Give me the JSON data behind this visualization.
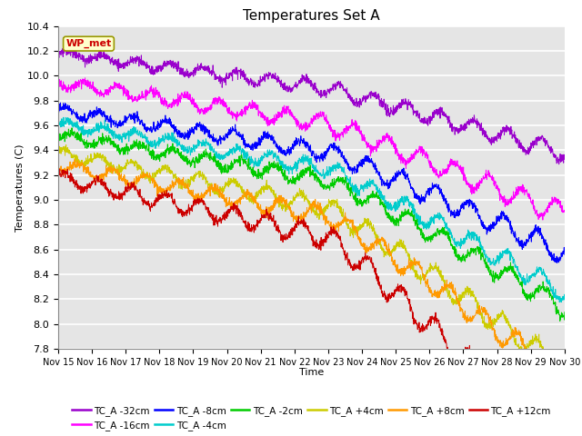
{
  "title": "Temperatures Set A",
  "xlabel": "Time",
  "ylabel": "Temperatures (C)",
  "ylim": [
    7.8,
    10.4
  ],
  "xlim": [
    0,
    15
  ],
  "x_tick_labels": [
    "Nov 15",
    "Nov 16",
    "Nov 17",
    "Nov 18",
    "Nov 19",
    "Nov 20",
    "Nov 21",
    "Nov 22",
    "Nov 23",
    "Nov 24",
    "Nov 25",
    "Nov 26",
    "Nov 27",
    "Nov 28",
    "Nov 29",
    "Nov 30"
  ],
  "series": [
    {
      "label": "TC_A -32cm",
      "color": "#9900cc",
      "base_start": 10.18,
      "base_end": 9.38,
      "osc_amp": 0.07,
      "drop_extra": 0.0
    },
    {
      "label": "TC_A -16cm",
      "color": "#ff00ff",
      "base_start": 9.95,
      "base_end": 8.98,
      "osc_amp": 0.09,
      "drop_extra": 0.1
    },
    {
      "label": "TC_A -8cm",
      "color": "#0000ff",
      "base_start": 9.72,
      "base_end": 8.77,
      "osc_amp": 0.09,
      "drop_extra": 0.2
    },
    {
      "label": "TC_A -4cm",
      "color": "#00cccc",
      "base_start": 9.62,
      "base_end": 8.55,
      "osc_amp": 0.08,
      "drop_extra": 0.3
    },
    {
      "label": "TC_A -2cm",
      "color": "#00cc00",
      "base_start": 9.52,
      "base_end": 8.48,
      "osc_amp": 0.08,
      "drop_extra": 0.35
    },
    {
      "label": "TC_A +4cm",
      "color": "#cccc00",
      "base_start": 9.38,
      "base_end": 8.12,
      "osc_amp": 0.1,
      "drop_extra": 0.5
    },
    {
      "label": "TC_A +8cm",
      "color": "#ff9900",
      "base_start": 9.28,
      "base_end": 8.1,
      "osc_amp": 0.1,
      "drop_extra": 0.55
    },
    {
      "label": "TC_A +12cm",
      "color": "#cc0000",
      "base_start": 9.18,
      "base_end": 7.8,
      "osc_amp": 0.12,
      "drop_extra": 0.9
    }
  ],
  "n_points": 2000,
  "background_color": "#e5e5e5",
  "grid_color": "#ffffff",
  "wp_met_label": "WP_met",
  "wp_met_color": "#cc0000",
  "wp_met_bg": "#ffffcc",
  "wp_met_edge": "#999900"
}
